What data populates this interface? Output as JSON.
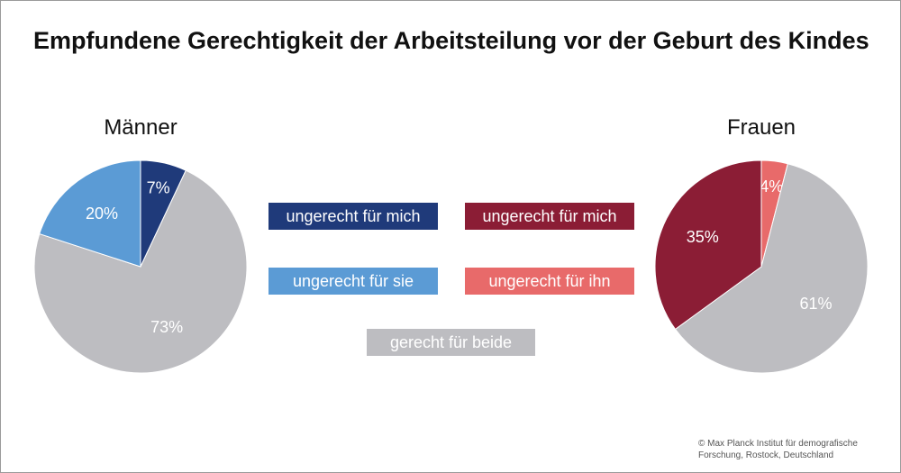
{
  "title": "Empfundene Gerechtigkeit der Arbeitsteilung vor der Geburt des Kindes",
  "chart_data": [
    {
      "type": "pie",
      "title": "Männer",
      "slices": [
        {
          "label": "ungerecht für mich",
          "value": 7,
          "value_label": "7%",
          "color": "#1f3a7a"
        },
        {
          "label": "gerecht für beide",
          "value": 73,
          "value_label": "73%",
          "color": "#bdbdc1"
        },
        {
          "label": "ungerecht für sie",
          "value": 20,
          "value_label": "20%",
          "color": "#5b9bd5"
        }
      ]
    },
    {
      "type": "pie",
      "title": "Frauen",
      "slices": [
        {
          "label": "ungerecht für ihn",
          "value": 4,
          "value_label": "4%",
          "color": "#e86a6a"
        },
        {
          "label": "gerecht für beide",
          "value": 61,
          "value_label": "61%",
          "color": "#bdbdc1"
        },
        {
          "label": "ungerecht für mich",
          "value": 35,
          "value_label": "35%",
          "color": "#8b1d35"
        }
      ]
    }
  ],
  "legend": {
    "men_unfair_me": {
      "label": "ungerecht für mich",
      "color": "#1f3a7a"
    },
    "men_unfair_her": {
      "label": "ungerecht für sie",
      "color": "#5b9bd5"
    },
    "women_unfair_me": {
      "label": "ungerecht für mich",
      "color": "#8b1d35"
    },
    "women_unfair_him": {
      "label": "ungerecht für ihn",
      "color": "#e86a6a"
    },
    "fair_both": {
      "label": "gerecht für beide",
      "color": "#bdbdc1"
    }
  },
  "copyright": {
    "line1": "© Max Planck Institut für demografische",
    "line2": "Forschung, Rostock, Deutschland"
  }
}
